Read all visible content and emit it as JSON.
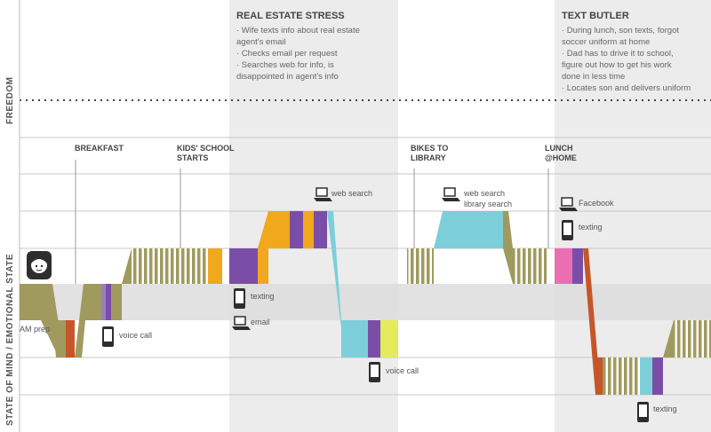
{
  "axis": {
    "freedom": "FREEDOM",
    "state": "STATE OF MIND / EMOTIONAL STATE"
  },
  "events": {
    "breakfast": "BREAKFAST",
    "school": [
      "KIDS' SCHOOL",
      "STARTS"
    ],
    "bikes": [
      "BIKES TO",
      "LIBRARY"
    ],
    "lunch": [
      "LUNCH",
      "@HOME"
    ]
  },
  "stories": {
    "real_estate": {
      "title": "REAL ESTATE STRESS",
      "lines": [
        "· Wife texts info about real estate",
        "  agent's email",
        "· Checks email per request",
        "· Searches web for info, is",
        "  disappointed in agent's info"
      ]
    },
    "butler": {
      "title": "TEXT BUTLER",
      "lines": [
        "· During lunch, son texts, forgot",
        "  soccer uniform at home",
        "· Dad has to drive it to school,",
        "  figure out how to get his work",
        "  done in less time",
        "· Locates son and delivers uniform"
      ]
    }
  },
  "activities": {
    "am_prep": "AM prep",
    "voice_call_1": "voice call",
    "texting_1": "texting",
    "email": "email",
    "web_search_1": "web search",
    "voice_call_2": "voice call",
    "web_search_2": [
      "web search",
      "library search"
    ],
    "facebook": "Facebook",
    "texting_2": "texting",
    "texting_3": "texting"
  },
  "colors": {
    "olive": "#a09a5e",
    "purple": "#7a4ea6",
    "lilac": "#9a7fc0",
    "orange": "#f2a81d",
    "cyan": "#7ccfd9",
    "lime": "#e4ea5b",
    "pink": "#ea6eb1",
    "rust": "#c6562a",
    "band": "#e1e1e1",
    "column": "#ececec"
  },
  "icons": [
    "person-face-icon",
    "phone-icon",
    "laptop-icon"
  ]
}
